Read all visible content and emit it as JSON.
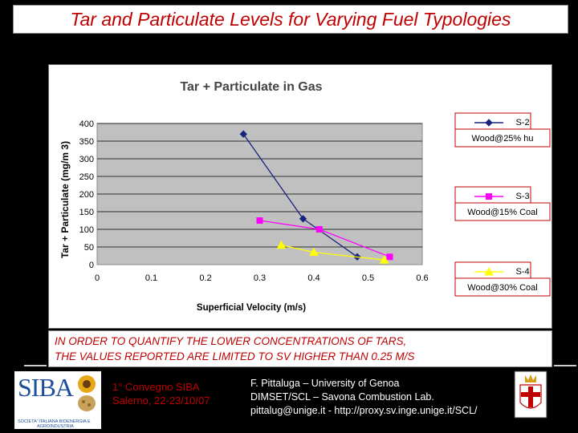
{
  "header": {
    "title": "Tar and Particulate Levels for Varying Fuel Typologies"
  },
  "chart_data": {
    "type": "line",
    "title": "Tar + Particulate in Gas",
    "xlabel": "Superficial Velocity (m/s)",
    "ylabel": "Tar + Particulate (mg/m 3)",
    "xlim": [
      0,
      0.6
    ],
    "ylim": [
      0,
      400
    ],
    "x_ticks": [
      "0",
      "0.1",
      "0.2",
      "0.3",
      "0.4",
      "0.5",
      "0.6"
    ],
    "y_ticks": [
      "0",
      "50",
      "100",
      "150",
      "200",
      "250",
      "300",
      "350",
      "400"
    ],
    "grid": true,
    "legend_position": "right",
    "series": [
      {
        "name": "S-2",
        "sublabel": "Wood@25% hu",
        "color": "#1a237e",
        "marker": "diamond",
        "x": [
          0.27,
          0.38,
          0.48
        ],
        "y": [
          370,
          130,
          22
        ]
      },
      {
        "name": "S-3",
        "sublabel": "Wood@15% Coal",
        "color": "#ff00ff",
        "marker": "square",
        "x": [
          0.3,
          0.41,
          0.54
        ],
        "y": [
          125,
          100,
          22
        ]
      },
      {
        "name": "S-4",
        "sublabel": "Wood@30% Coal",
        "color": "#ffff00",
        "marker": "triangle",
        "x": [
          0.34,
          0.4,
          0.53
        ],
        "y": [
          55,
          35,
          13
        ]
      }
    ]
  },
  "note": {
    "line1": "IN ORDER TO QUANTIFY THE LOWER CONCENTRATIONS OF  TARS,",
    "line2": "THE VALUES REPORTED ARE LIMITED TO SV HIGHER THAN 0.25 M/S"
  },
  "footer": {
    "logo_text": "SIBA",
    "logo_sub1": "SOCIETA' ITALIANA BIOENERGIA E",
    "logo_sub2": "AGROINDUSTRIA",
    "convegno1": "1° Convegno SIBA",
    "convegno2": "Salerno, 22-23/10/07",
    "credit1": "F. Pittaluga – University of Genoa",
    "credit2": "DIMSET/SCL – Savona Combustion Lab.",
    "credit3": "pittalug@unige.it - http://proxy.sv.inge.unige.it/SCL/"
  }
}
